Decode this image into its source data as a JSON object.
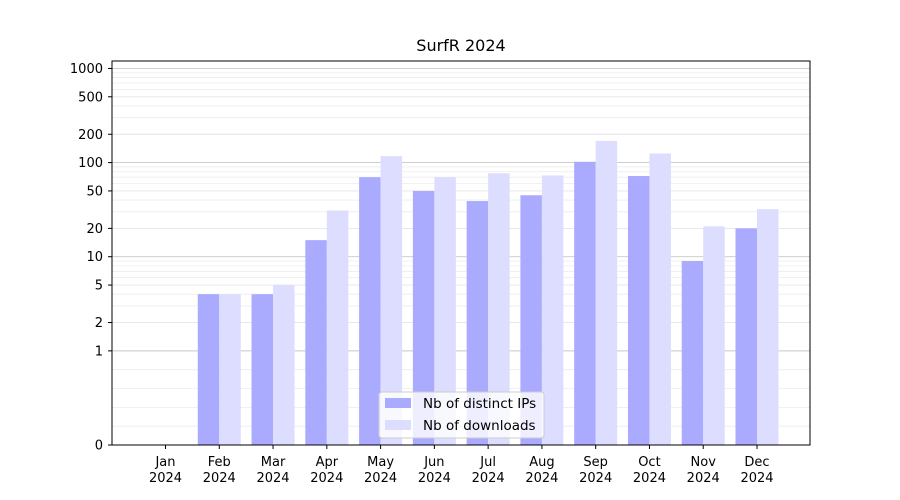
{
  "chart_data": {
    "type": "bar",
    "title": "SurfR 2024",
    "xlabel": "",
    "ylabel": "",
    "categories": [
      {
        "month": "Jan",
        "year": "2024"
      },
      {
        "month": "Feb",
        "year": "2024"
      },
      {
        "month": "Mar",
        "year": "2024"
      },
      {
        "month": "Apr",
        "year": "2024"
      },
      {
        "month": "May",
        "year": "2024"
      },
      {
        "month": "Jun",
        "year": "2024"
      },
      {
        "month": "Jul",
        "year": "2024"
      },
      {
        "month": "Aug",
        "year": "2024"
      },
      {
        "month": "Sep",
        "year": "2024"
      },
      {
        "month": "Oct",
        "year": "2024"
      },
      {
        "month": "Nov",
        "year": "2024"
      },
      {
        "month": "Dec",
        "year": "2024"
      }
    ],
    "series": [
      {
        "name": "Nb of distinct IPs",
        "color": "#aaaaff",
        "values": [
          0,
          4,
          4,
          15,
          70,
          50,
          39,
          45,
          102,
          72,
          9,
          20
        ]
      },
      {
        "name": "Nb of downloads",
        "color": "#ddddff",
        "values": [
          0,
          4,
          5,
          31,
          117,
          70,
          77,
          73,
          170,
          125,
          21,
          32
        ]
      }
    ],
    "y_scale": "symlog",
    "ylim": [
      0,
      1200
    ],
    "yticks": [
      0,
      1,
      2,
      5,
      10,
      20,
      50,
      100,
      200,
      500,
      1000
    ],
    "grid": true,
    "legend_position": "bottom-center"
  }
}
